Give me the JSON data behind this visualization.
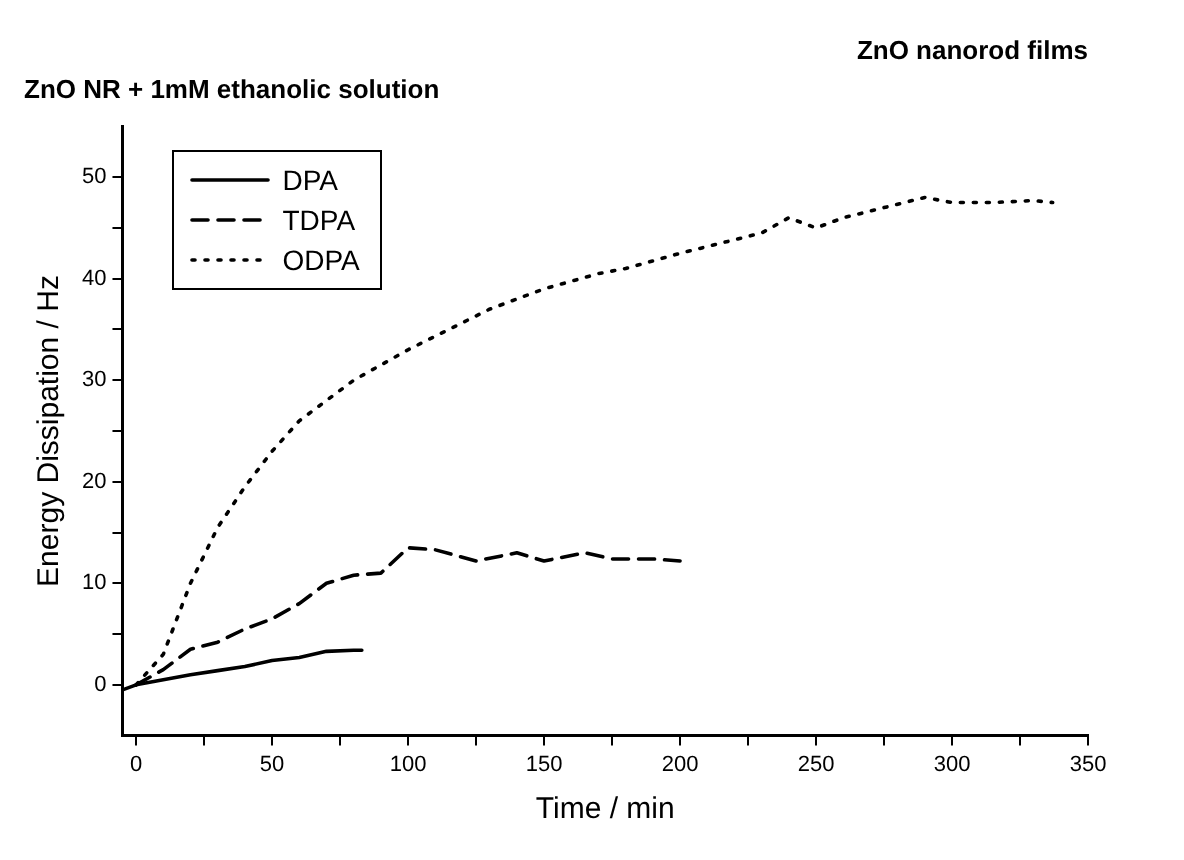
{
  "chart_data": {
    "type": "line",
    "title": "ZnO nanorod films",
    "subtitle": "ZnO NR + 1mM ethanolic solution",
    "xlabel": "Time / min",
    "ylabel": "Energy Dissipation / Hz",
    "xlim": [
      -5,
      350
    ],
    "ylim": [
      -5,
      55
    ],
    "xticks": [
      0,
      {
        "value": 25,
        "label": null
      },
      50,
      {
        "value": 75,
        "label": null
      },
      100,
      {
        "value": 125,
        "label": null
      },
      150,
      {
        "value": 175,
        "label": null
      },
      200,
      {
        "value": 225,
        "label": null
      },
      250,
      {
        "value": 275,
        "label": null
      },
      300,
      {
        "value": 325,
        "label": null
      },
      350
    ],
    "yticks": [
      0,
      {
        "value": 5,
        "label": null
      },
      10,
      {
        "value": 15,
        "label": null
      },
      20,
      {
        "value": 25,
        "label": null
      },
      30,
      {
        "value": 35,
        "label": null
      },
      40,
      {
        "value": 45,
        "label": null
      },
      50
    ],
    "grid": false,
    "legend": "top left",
    "marker": "none",
    "series": [
      {
        "name": "DPA",
        "color": "#000000",
        "line_style": "solid",
        "x": [
          -5,
          0,
          10,
          20,
          30,
          40,
          50,
          60,
          70,
          80,
          83
        ],
        "values": [
          -0.5,
          0,
          0.5,
          1,
          1.4,
          1.8,
          2.4,
          2.7,
          3.3,
          3.4,
          3.4
        ]
      },
      {
        "name": "TDPA",
        "color": "#000000",
        "line_style": "dashed",
        "x": [
          0,
          10,
          20,
          30,
          40,
          50,
          60,
          70,
          80,
          90,
          100,
          110,
          125,
          140,
          150,
          165,
          175,
          190,
          200
        ],
        "values": [
          0,
          1.5,
          3.5,
          4.2,
          5.5,
          6.5,
          8,
          10,
          10.8,
          11,
          13.5,
          13.3,
          12.2,
          13,
          12.2,
          13,
          12.4,
          12.4,
          12.2
        ]
      },
      {
        "name": "ODPA",
        "color": "#000000",
        "line_style": "dotted",
        "x": [
          0,
          10,
          20,
          30,
          40,
          50,
          60,
          70,
          80,
          90,
          100,
          115,
          130,
          150,
          170,
          180,
          200,
          215,
          230,
          240,
          250,
          260,
          275,
          290,
          300,
          315,
          330,
          337
        ],
        "values": [
          0,
          3,
          10,
          15.5,
          19.5,
          23,
          26,
          28,
          30,
          31.5,
          33,
          35,
          37,
          39,
          40.5,
          41,
          42.5,
          43.5,
          44.5,
          46,
          45,
          46,
          47,
          48,
          47.5,
          47.5,
          47.7,
          47.5
        ]
      }
    ]
  }
}
